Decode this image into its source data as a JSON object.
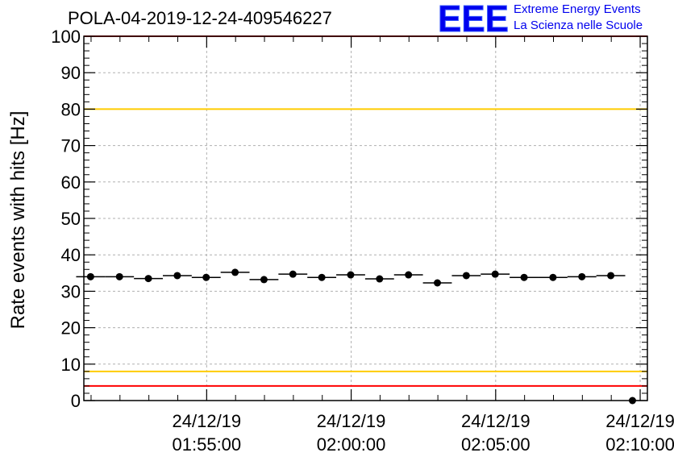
{
  "title": "POLA-04-2019-12-24-409546227",
  "logo": {
    "mark": "EEE",
    "line1": "Extreme Energy Events",
    "line2": "La Scienza nelle Scuole",
    "color": "#0000ee"
  },
  "chart_data": {
    "type": "scatter",
    "title": "POLA-04-2019-12-24-409546227",
    "ylabel": "Rate events with hits [Hz]",
    "xlabel": "",
    "ylim": [
      0,
      100
    ],
    "y_ticks": [
      0,
      10,
      20,
      30,
      40,
      50,
      60,
      70,
      80,
      90,
      100
    ],
    "xlim": [
      "2019-12-24T01:50:45",
      "2019-12-24T02:10:15"
    ],
    "x_ticks": [
      {
        "x": "2019-12-24T01:55:00",
        "date": "24/12/19",
        "time": "01:55:00"
      },
      {
        "x": "2019-12-24T02:00:00",
        "date": "24/12/19",
        "time": "02:00:00"
      },
      {
        "x": "2019-12-24T02:05:00",
        "date": "24/12/19",
        "time": "02:05:00"
      },
      {
        "x": "2019-12-24T02:10:00",
        "date": "24/12/19",
        "time": "02:10:00"
      }
    ],
    "grid": true,
    "bin_width_seconds": 60,
    "series": [
      {
        "marker": "circle",
        "color": "#000000",
        "x": [
          "2019-12-24T01:50:59",
          "2019-12-24T01:51:59",
          "2019-12-24T01:52:59",
          "2019-12-24T01:53:59",
          "2019-12-24T01:54:59",
          "2019-12-24T01:55:59",
          "2019-12-24T01:56:59",
          "2019-12-24T01:57:59",
          "2019-12-24T01:58:59",
          "2019-12-24T01:59:59",
          "2019-12-24T02:00:59",
          "2019-12-24T02:01:59",
          "2019-12-24T02:02:59",
          "2019-12-24T02:03:59",
          "2019-12-24T02:04:59",
          "2019-12-24T02:05:59",
          "2019-12-24T02:06:59",
          "2019-12-24T02:07:59",
          "2019-12-24T02:08:59",
          "2019-12-24T02:09:44"
        ],
        "y": [
          34.0,
          34.0,
          33.5,
          34.3,
          33.8,
          35.2,
          33.2,
          34.7,
          33.8,
          34.5,
          33.4,
          34.5,
          32.3,
          34.3,
          34.7,
          33.8,
          33.8,
          34.0,
          34.3,
          0.0
        ]
      }
    ],
    "reference_lines": [
      {
        "y": 100,
        "color": "#ff0000"
      },
      {
        "y": 80,
        "color": "#ffcc00"
      },
      {
        "y": 8,
        "color": "#ffcc00"
      },
      {
        "y": 4,
        "color": "#ff0000"
      }
    ]
  }
}
